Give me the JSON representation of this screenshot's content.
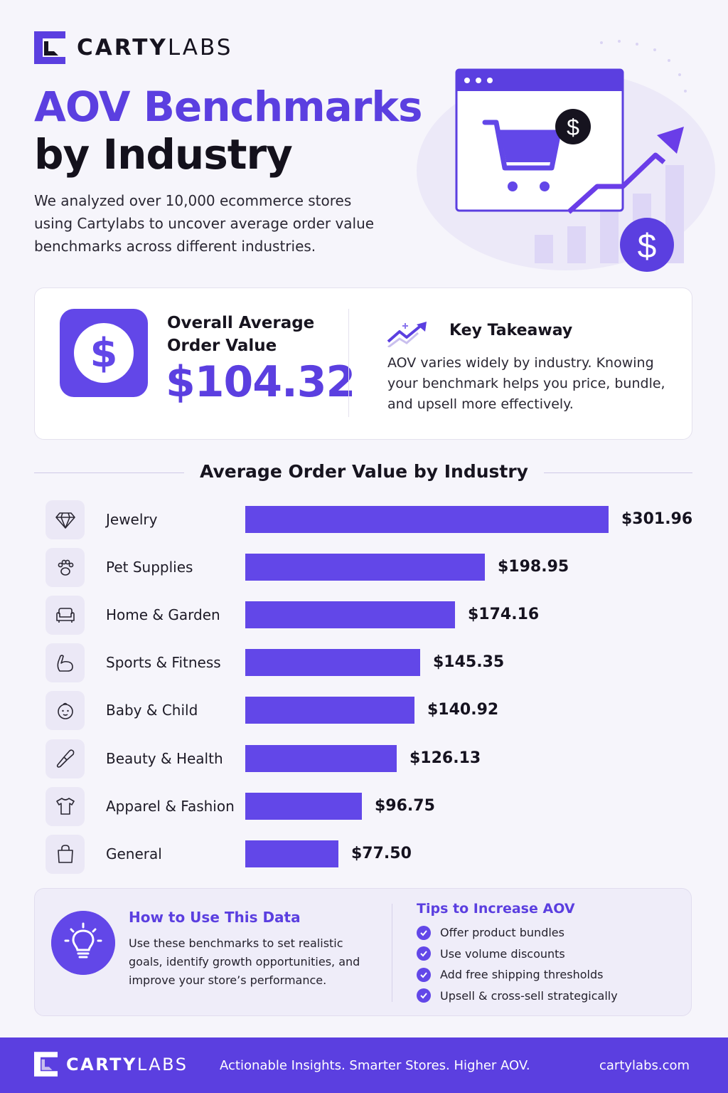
{
  "brand": {
    "name_bold": "CARTY",
    "name_light": "LABS"
  },
  "header": {
    "title_line1": "AOV Benchmarks",
    "title_line2": "by Industry",
    "intro": "We analyzed over 10,000 ecommerce stores using Cartylabs to uncover average order value benchmarks across different industries."
  },
  "summary": {
    "overall_label": "Overall Average Order Value",
    "overall_value": "$104.32",
    "takeaway_title": "Key Takeaway",
    "takeaway_text": "AOV varies widely by industry. Knowing your benchmark helps you price, bundle, and upsell more effectively."
  },
  "chart_data": {
    "type": "bar",
    "orientation": "horizontal",
    "title": "Average Order Value by Industry",
    "categories": [
      "Jewelry",
      "Pet Supplies",
      "Home & Garden",
      "Sports & Fitness",
      "Baby & Child",
      "Beauty & Health",
      "Apparel & Fashion",
      "General"
    ],
    "values": [
      301.96,
      198.95,
      174.16,
      145.35,
      140.92,
      126.13,
      96.75,
      77.5
    ],
    "value_labels": [
      "$301.96",
      "$198.95",
      "$174.16",
      "$145.35",
      "$140.92",
      "$126.13",
      "$96.75",
      "$77.50"
    ],
    "icons": [
      "diamond-icon",
      "paw-icon",
      "armchair-icon",
      "flexed-arm-icon",
      "baby-face-icon",
      "makeup-brush-icon",
      "tshirt-icon",
      "shopping-bag-icon"
    ],
    "xlim": [
      0,
      301.96
    ],
    "grid": false,
    "bar_color": "#6247e8"
  },
  "howto": {
    "title": "How to Use This Data",
    "text": "Use these benchmarks to set realistic goals, identify growth opportunities, and improve your store’s performance."
  },
  "tips": {
    "title": "Tips to Increase AOV",
    "items": [
      "Offer product bundles",
      "Use volume discounts",
      "Add free shipping thresholds",
      "Upsell & cross-sell strategically"
    ]
  },
  "footer": {
    "tagline": "Actionable Insights. Smarter Stores. Higher AOV.",
    "url": "cartylabs.com"
  },
  "colors": {
    "accent": "#5b3fe0",
    "bar": "#6247e8",
    "background": "#f6f5fb"
  }
}
